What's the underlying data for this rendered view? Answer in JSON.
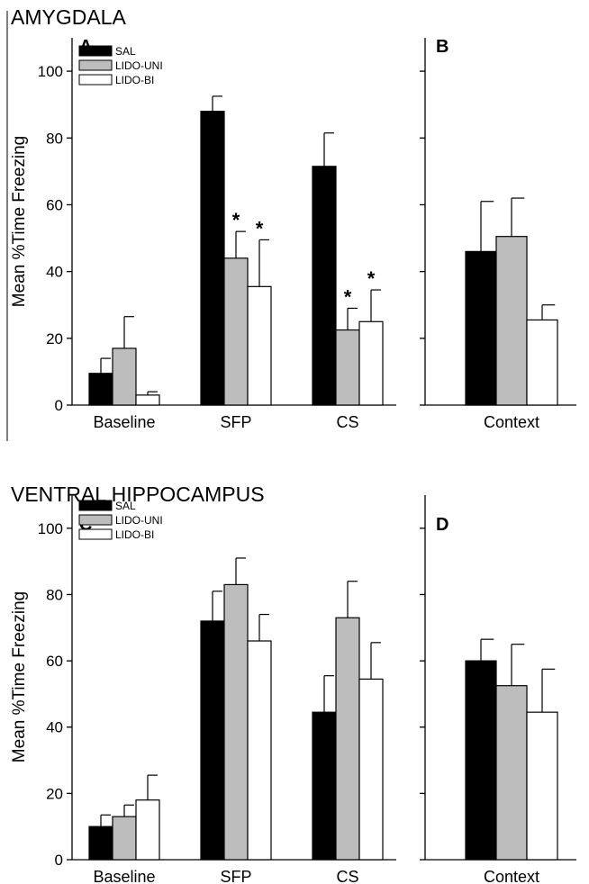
{
  "chart_data": [
    {
      "type": "bar",
      "panel": "A",
      "section_title": "AMYGDALA",
      "ylabel": "Mean %Time Freezing",
      "ylim": [
        0,
        110
      ],
      "yticks": [
        0,
        20,
        40,
        60,
        80,
        100
      ],
      "categories": [
        "Baseline",
        "SFP",
        "CS"
      ],
      "legend": "top-left",
      "series": [
        {
          "name": "SAL",
          "color": "#000000",
          "values": [
            9.5,
            88,
            71.5
          ],
          "errors": [
            4.5,
            4.5,
            10
          ]
        },
        {
          "name": "LIDO-UNI",
          "color": "#bdbdbd",
          "values": [
            17,
            44,
            22.5
          ],
          "errors": [
            9.5,
            8,
            6.5
          ]
        },
        {
          "name": "LIDO-BI",
          "color": "#ffffff",
          "values": [
            3,
            35.5,
            25
          ],
          "errors": [
            1,
            14,
            9.5
          ]
        }
      ],
      "annotations": [
        {
          "category": "SFP",
          "series": "LIDO-UNI",
          "text": "*"
        },
        {
          "category": "SFP",
          "series": "LIDO-BI",
          "text": "*"
        },
        {
          "category": "CS",
          "series": "LIDO-UNI",
          "text": "*"
        },
        {
          "category": "CS",
          "series": "LIDO-BI",
          "text": "*"
        }
      ]
    },
    {
      "type": "bar",
      "panel": "B",
      "ylim": [
        0,
        110
      ],
      "categories": [
        "Context"
      ],
      "series": [
        {
          "name": "SAL",
          "color": "#000000",
          "values": [
            46
          ],
          "errors": [
            15
          ]
        },
        {
          "name": "LIDO-UNI",
          "color": "#bdbdbd",
          "values": [
            50.5
          ],
          "errors": [
            11.5
          ]
        },
        {
          "name": "LIDO-BI",
          "color": "#ffffff",
          "values": [
            25.5
          ],
          "errors": [
            4.5
          ]
        }
      ]
    },
    {
      "type": "bar",
      "panel": "C",
      "section_title": "VENTRAL HIPPOCAMPUS",
      "ylabel": "Mean %Time Freezing",
      "ylim": [
        0,
        110
      ],
      "yticks": [
        0,
        20,
        40,
        60,
        80,
        100
      ],
      "categories": [
        "Baseline",
        "SFP",
        "CS"
      ],
      "legend": "top-left",
      "series": [
        {
          "name": "SAL",
          "color": "#000000",
          "values": [
            10,
            72,
            44.5
          ],
          "errors": [
            3.5,
            9,
            11
          ]
        },
        {
          "name": "LIDO-UNI",
          "color": "#bdbdbd",
          "values": [
            13,
            83,
            73
          ],
          "errors": [
            3.5,
            8,
            11
          ]
        },
        {
          "name": "LIDO-BI",
          "color": "#ffffff",
          "values": [
            18,
            66,
            54.5
          ],
          "errors": [
            7.5,
            8,
            11
          ]
        }
      ],
      "annotations": []
    },
    {
      "type": "bar",
      "panel": "D",
      "ylim": [
        0,
        110
      ],
      "categories": [
        "Context"
      ],
      "series": [
        {
          "name": "SAL",
          "color": "#000000",
          "values": [
            60
          ],
          "errors": [
            6.5
          ]
        },
        {
          "name": "LIDO-UNI",
          "color": "#bdbdbd",
          "values": [
            52.5
          ],
          "errors": [
            12.5
          ]
        },
        {
          "name": "LIDO-BI",
          "color": "#ffffff",
          "values": [
            44.5
          ],
          "errors": [
            13
          ]
        }
      ]
    }
  ]
}
